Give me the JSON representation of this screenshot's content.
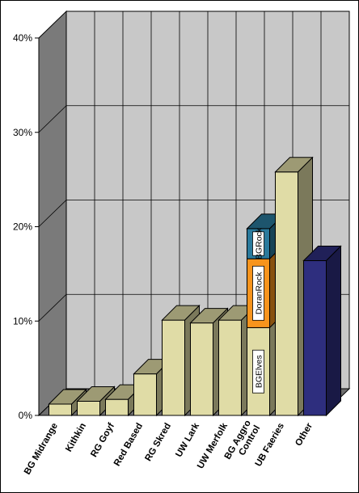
{
  "chart_data": {
    "type": "bar",
    "stacked": true,
    "three_d": true,
    "title": "",
    "xlabel": "",
    "ylabel": "",
    "ylim": [
      0,
      40
    ],
    "y_ticks": [
      "0%",
      "10%",
      "20%",
      "30%",
      "40%"
    ],
    "grid": true,
    "categories": [
      [
        "BG Midrange"
      ],
      [
        "Kithkin"
      ],
      [
        "RG Goyf"
      ],
      [
        "Red Based"
      ],
      [
        "RG Skred"
      ],
      [
        "UW Lark"
      ],
      [
        "UW Merfolk"
      ],
      [
        "BG Aggro",
        "Control"
      ],
      [
        "UB Faeries"
      ],
      [
        "Other"
      ]
    ],
    "bars": [
      {
        "segments": [
          {
            "value": 1.2,
            "color": "#e0dca6"
          }
        ]
      },
      {
        "segments": [
          {
            "value": 1.5,
            "color": "#e0dca6"
          }
        ]
      },
      {
        "segments": [
          {
            "value": 1.7,
            "color": "#e0dca6"
          }
        ]
      },
      {
        "segments": [
          {
            "value": 4.4,
            "color": "#e0dca6"
          }
        ]
      },
      {
        "segments": [
          {
            "value": 10.1,
            "color": "#e0dca6"
          }
        ]
      },
      {
        "segments": [
          {
            "value": 9.8,
            "color": "#e0dca6"
          }
        ]
      },
      {
        "segments": [
          {
            "value": 10.1,
            "color": "#e0dca6"
          }
        ]
      },
      {
        "segments": [
          {
            "value": 9.3,
            "color": "#e0dca6",
            "label": "BGElves"
          },
          {
            "value": 7.3,
            "color": "#f7941d",
            "label": "DoranRock"
          },
          {
            "value": 3.2,
            "color": "#2a7a9c",
            "label": "BGRock"
          }
        ]
      },
      {
        "segments": [
          {
            "value": 25.8,
            "color": "#e0dca6"
          }
        ]
      },
      {
        "segments": [
          {
            "value": 16.4,
            "color": "#2e2e7e"
          }
        ]
      }
    ],
    "colors": {
      "back_wall": "#c8c8c8",
      "side_wall": "#7a7a7a",
      "floor": "#6e6e6e",
      "grid": "#000000"
    }
  }
}
